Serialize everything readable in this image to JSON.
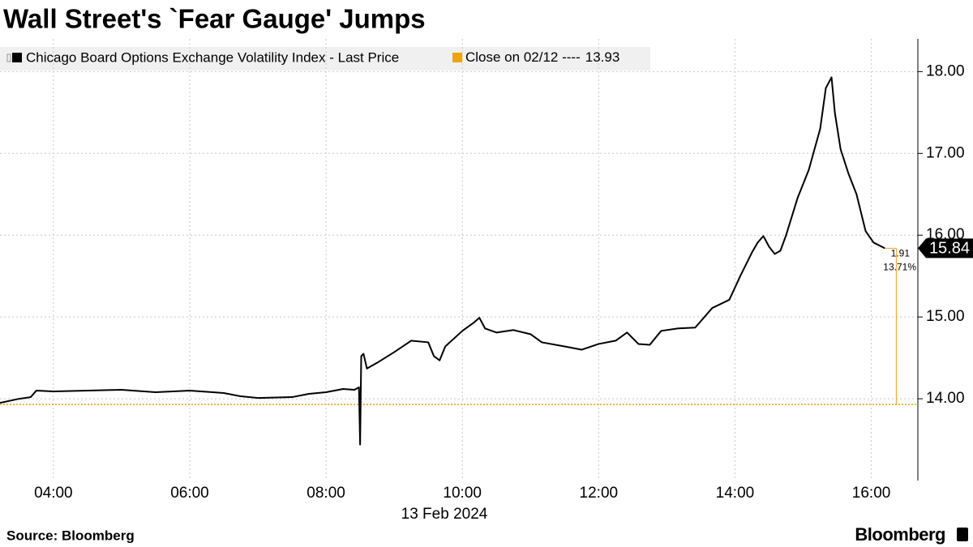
{
  "chart_data": {
    "type": "line",
    "title": "Wall Street's `Fear Gauge' Jumps",
    "x_label": "13 Feb 2024",
    "x": [
      "03:13",
      "03:30",
      "03:40",
      "03:45",
      "04:00",
      "04:30",
      "05:00",
      "05:30",
      "06:00",
      "06:30",
      "06:45",
      "07:00",
      "07:30",
      "07:45",
      "08:00",
      "08:15",
      "08:25",
      "08:29",
      "08:30",
      "08:31",
      "08:33",
      "08:36",
      "08:45",
      "09:00",
      "09:15",
      "09:30",
      "09:35",
      "09:40",
      "09:45",
      "10:00",
      "10:10",
      "10:15",
      "10:20",
      "10:30",
      "10:45",
      "11:00",
      "11:10",
      "11:30",
      "11:45",
      "12:00",
      "12:15",
      "12:25",
      "12:35",
      "12:45",
      "12:55",
      "13:10",
      "13:25",
      "13:40",
      "13:55",
      "14:05",
      "14:15",
      "14:20",
      "14:25",
      "14:30",
      "14:35",
      "14:40",
      "14:45",
      "14:55",
      "15:05",
      "15:15",
      "15:20",
      "15:25",
      "15:28",
      "15:33",
      "15:40",
      "15:47",
      "15:55",
      "16:02",
      "16:12"
    ],
    "series": [
      {
        "name": "Chicago Board Options Exchange Volatility Index - Last Price",
        "color": "#000000",
        "values": [
          13.95,
          14.0,
          14.02,
          14.1,
          14.09,
          14.1,
          14.11,
          14.08,
          14.1,
          14.07,
          14.03,
          14.01,
          14.02,
          14.06,
          14.08,
          14.12,
          14.11,
          14.14,
          13.44,
          14.52,
          14.55,
          14.37,
          14.44,
          14.57,
          14.71,
          14.69,
          14.52,
          14.47,
          14.64,
          14.83,
          14.93,
          14.99,
          14.86,
          14.81,
          14.84,
          14.79,
          14.69,
          14.64,
          14.6,
          14.67,
          14.71,
          14.81,
          14.67,
          14.66,
          14.83,
          14.86,
          14.87,
          15.11,
          15.21,
          15.51,
          15.79,
          15.91,
          15.99,
          15.86,
          15.77,
          15.81,
          16.0,
          16.45,
          16.8,
          17.3,
          17.8,
          17.93,
          17.49,
          17.05,
          16.75,
          16.5,
          16.05,
          15.91,
          15.84
        ]
      }
    ],
    "ref_line": {
      "name": "Close on 02/12 ----",
      "value": 13.93,
      "color": "#f0a30a"
    },
    "annotations": [
      "1.91",
      "13.71%"
    ],
    "xlim": [
      "03:13",
      "16:41"
    ],
    "xticks": [
      "04:00",
      "06:00",
      "08:00",
      "10:00",
      "12:00",
      "14:00",
      "16:00"
    ],
    "ylim": [
      13,
      18.4
    ],
    "yticks": [
      {
        "value": 14,
        "label": "14.00"
      },
      {
        "value": 15,
        "label": "15.00"
      },
      {
        "value": 16,
        "label": "16.00"
      },
      {
        "value": 17,
        "label": "17.00"
      },
      {
        "value": 18,
        "label": "18.00"
      }
    ],
    "grid": true
  },
  "footer": {
    "source": "Source: Bloomberg",
    "brand": "Bloomberg"
  }
}
